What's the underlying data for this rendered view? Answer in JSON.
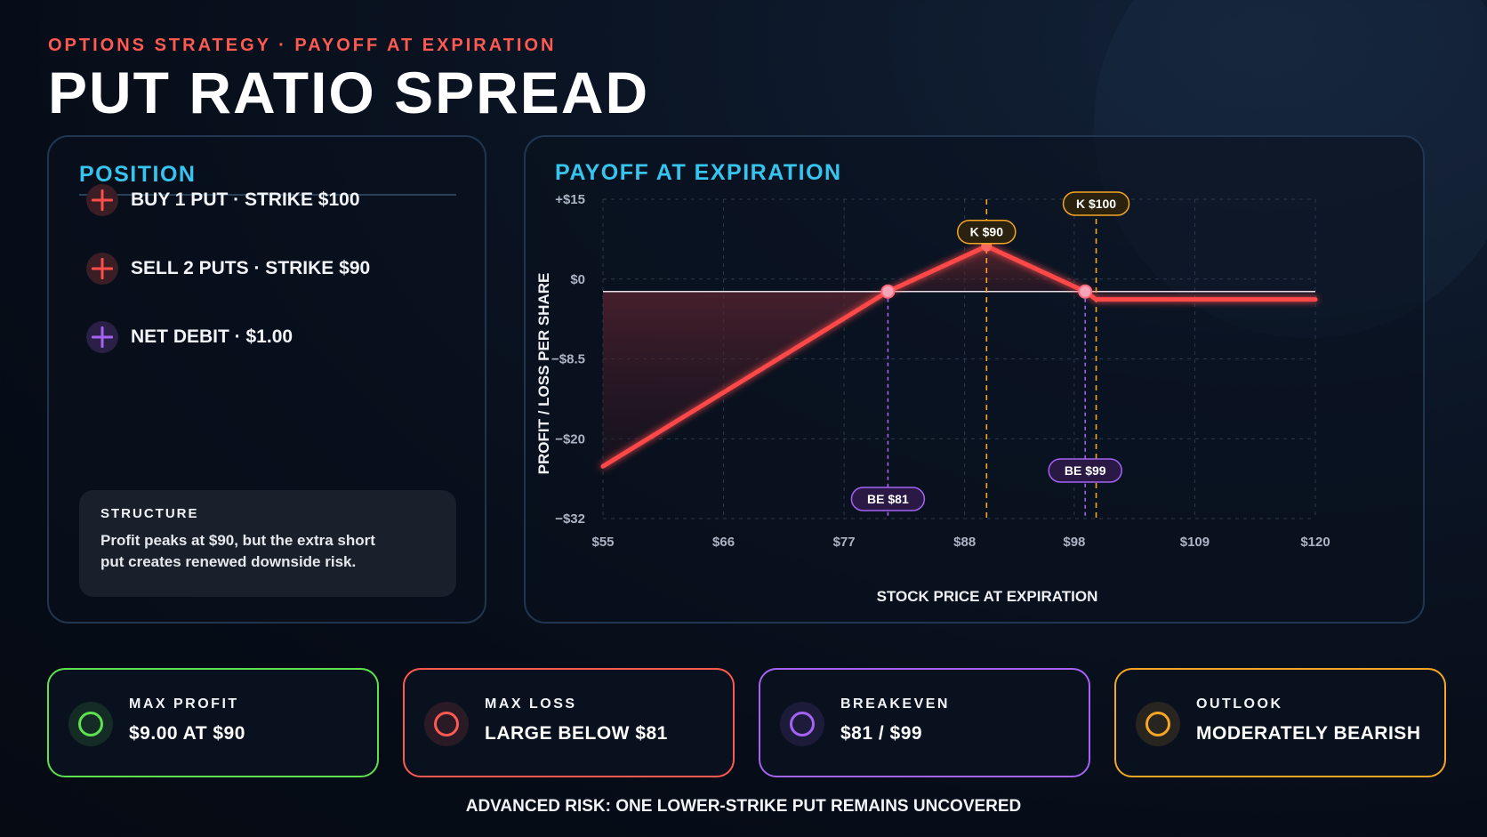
{
  "header": {
    "kicker": "OPTIONS STRATEGY · PAYOFF AT EXPIRATION",
    "title": "PUT RATIO SPREAD"
  },
  "position": {
    "heading": "POSITION",
    "items": [
      {
        "label": "BUY 1 PUT · STRIKE $100",
        "icon": "plus-icon",
        "color": "#ff4e49"
      },
      {
        "label": "SELL 2 PUTS · STRIKE $90",
        "icon": "plus-icon",
        "color": "#ff4e49"
      },
      {
        "label": "NET DEBIT · $1.00",
        "icon": "plus-icon",
        "color": "#a463f2"
      }
    ],
    "structure": {
      "title": "STRUCTURE",
      "text": "Profit peaks at $90, but the extra short put creates renewed downside risk."
    }
  },
  "chart": {
    "heading": "PAYOFF AT EXPIRATION"
  },
  "chart_data": {
    "type": "line",
    "xlabel": "STOCK PRICE AT EXPIRATION",
    "ylabel": "PROFIT / LOSS PER SHARE",
    "x_ticks": [
      55,
      66,
      77,
      88,
      98,
      109,
      120
    ],
    "x_tick_labels": [
      "$55",
      "$66",
      "$77",
      "$88",
      "$98",
      "$109",
      "$120"
    ],
    "y_ticks": [
      15,
      0,
      -8.5,
      -20,
      -32
    ],
    "y_tick_labels": [
      "+$15",
      "$0",
      "−$8.5",
      "−$20",
      "−$32"
    ],
    "xlim": [
      55,
      120
    ],
    "ylim": [
      -32,
      15
    ],
    "grid": true,
    "series": [
      {
        "points": [
          [
            55,
            -22
          ],
          [
            81,
            0
          ],
          [
            90,
            9
          ],
          [
            99,
            0
          ],
          [
            100,
            -1
          ],
          [
            120,
            -1
          ]
        ],
        "color": "#ff4a4a"
      }
    ],
    "zero_line": {
      "color": "#e8dfe8"
    },
    "breakeven_markers": [
      {
        "x": 81,
        "label": "BE $81",
        "color": "#a463f2"
      },
      {
        "x": 99,
        "label": "BE $99",
        "color": "#a463f2"
      }
    ],
    "strike_markers": [
      {
        "x": 90,
        "label": "K $90",
        "color": "#f5a623"
      },
      {
        "x": 100,
        "label": "K $100",
        "color": "#f5a623"
      }
    ]
  },
  "stats": [
    {
      "label": "MAX PROFIT",
      "value": "$9.00 AT $90",
      "color": "#5ee04f",
      "icon": "circle-icon"
    },
    {
      "label": "MAX LOSS",
      "value": "LARGE BELOW $81",
      "color": "#ff5a52",
      "icon": "circle-icon"
    },
    {
      "label": "BREAKEVEN",
      "value": "$81 / $99",
      "color": "#a463f2",
      "icon": "circle-icon"
    },
    {
      "label": "OUTLOOK",
      "value": "MODERATELY BEARISH",
      "color": "#f5a623",
      "icon": "circle-icon"
    }
  ],
  "footer": "ADVANCED RISK: ONE LOWER-STRIKE PUT REMAINS UNCOVERED"
}
